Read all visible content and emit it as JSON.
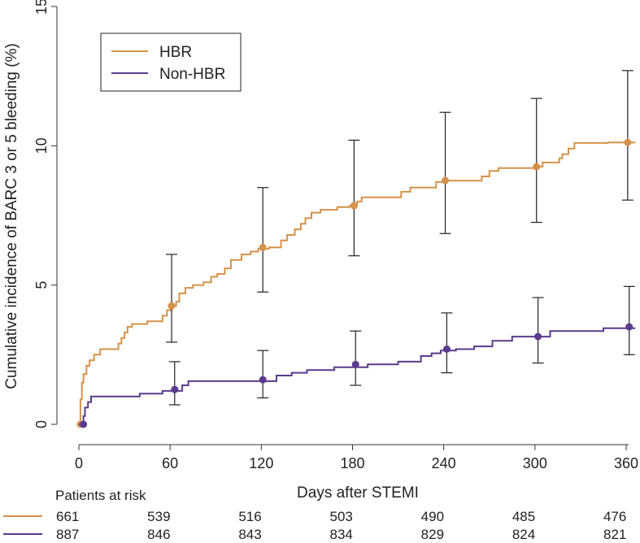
{
  "chart_data": {
    "type": "line",
    "title": "",
    "xlabel": "Days after STEMI",
    "ylabel": "Cumulative incidence of BARC 3 or 5 bleeding (%)",
    "xlim": [
      0,
      366
    ],
    "ylim": [
      0,
      15
    ],
    "x_ticks": [
      0,
      60,
      120,
      180,
      240,
      300,
      360
    ],
    "y_ticks": [
      0,
      5,
      10,
      15
    ],
    "legend": {
      "position": "top-left",
      "entries": [
        "HBR",
        "Non-HBR"
      ]
    },
    "series": [
      {
        "name": "HBR",
        "color": "#d4924a",
        "steps": [
          [
            0,
            0
          ],
          [
            1,
            0.9
          ],
          [
            2,
            1.5
          ],
          [
            3,
            1.8
          ],
          [
            5,
            2.1
          ],
          [
            7,
            2.3
          ],
          [
            10,
            2.5
          ],
          [
            14,
            2.7
          ],
          [
            26,
            2.9
          ],
          [
            28,
            3.1
          ],
          [
            30,
            3.3
          ],
          [
            32,
            3.5
          ],
          [
            35,
            3.6
          ],
          [
            45,
            3.7
          ],
          [
            55,
            3.9
          ],
          [
            58,
            4.1
          ],
          [
            61,
            4.25
          ],
          [
            64,
            4.4
          ],
          [
            66,
            4.7
          ],
          [
            70,
            4.9
          ],
          [
            75,
            5.0
          ],
          [
            82,
            5.1
          ],
          [
            87,
            5.3
          ],
          [
            91,
            5.4
          ],
          [
            96,
            5.6
          ],
          [
            100,
            5.9
          ],
          [
            107,
            6.1
          ],
          [
            113,
            6.2
          ],
          [
            118,
            6.3
          ],
          [
            125,
            6.35
          ],
          [
            133,
            6.6
          ],
          [
            137,
            6.8
          ],
          [
            142,
            7.0
          ],
          [
            146,
            7.2
          ],
          [
            149,
            7.4
          ],
          [
            153,
            7.6
          ],
          [
            159,
            7.7
          ],
          [
            170,
            7.8
          ],
          [
            178,
            7.85
          ],
          [
            183,
            8.0
          ],
          [
            186,
            8.15
          ],
          [
            212,
            8.35
          ],
          [
            218,
            8.5
          ],
          [
            235,
            8.7
          ],
          [
            240,
            8.75
          ],
          [
            265,
            8.9
          ],
          [
            270,
            9.1
          ],
          [
            276,
            9.2
          ],
          [
            300,
            9.25
          ],
          [
            305,
            9.4
          ],
          [
            316,
            9.55
          ],
          [
            318,
            9.7
          ],
          [
            322,
            9.9
          ],
          [
            326,
            10.1
          ],
          [
            348,
            10.12
          ],
          [
            366,
            10.12
          ]
        ],
        "markers": [
          {
            "x": 1,
            "y": 0,
            "lo": 0,
            "hi": 0
          },
          {
            "x": 61,
            "y": 4.25,
            "lo": 2.95,
            "hi": 6.1
          },
          {
            "x": 121,
            "y": 6.35,
            "lo": 4.75,
            "hi": 8.5
          },
          {
            "x": 181,
            "y": 7.85,
            "lo": 6.05,
            "hi": 10.2
          },
          {
            "x": 241,
            "y": 8.75,
            "lo": 6.85,
            "hi": 11.2
          },
          {
            "x": 301,
            "y": 9.25,
            "lo": 7.25,
            "hi": 11.7
          },
          {
            "x": 361,
            "y": 10.12,
            "lo": 8.05,
            "hi": 12.7
          }
        ]
      },
      {
        "name": "Non-HBR",
        "color": "#5b3a8c",
        "steps": [
          [
            0,
            0
          ],
          [
            3,
            0.3
          ],
          [
            4,
            0.6
          ],
          [
            6,
            0.8
          ],
          [
            8,
            1.0
          ],
          [
            40,
            1.1
          ],
          [
            55,
            1.2
          ],
          [
            68,
            1.4
          ],
          [
            72,
            1.55
          ],
          [
            115,
            1.55
          ],
          [
            130,
            1.75
          ],
          [
            140,
            1.85
          ],
          [
            150,
            1.95
          ],
          [
            168,
            2.05
          ],
          [
            190,
            2.15
          ],
          [
            210,
            2.25
          ],
          [
            225,
            2.45
          ],
          [
            232,
            2.55
          ],
          [
            238,
            2.65
          ],
          [
            248,
            2.7
          ],
          [
            260,
            2.8
          ],
          [
            272,
            3.0
          ],
          [
            285,
            3.15
          ],
          [
            310,
            3.35
          ],
          [
            345,
            3.45
          ],
          [
            366,
            3.45
          ]
        ],
        "markers": [
          {
            "x": 3,
            "y": 0,
            "lo": 0,
            "hi": 0
          },
          {
            "x": 63,
            "y": 1.25,
            "lo": 0.7,
            "hi": 2.25
          },
          {
            "x": 121,
            "y": 1.6,
            "lo": 0.95,
            "hi": 2.65
          },
          {
            "x": 182,
            "y": 2.15,
            "lo": 1.4,
            "hi": 3.35
          },
          {
            "x": 242,
            "y": 2.7,
            "lo": 1.85,
            "hi": 4.0
          },
          {
            "x": 302,
            "y": 3.15,
            "lo": 2.2,
            "hi": 4.55
          },
          {
            "x": 362,
            "y": 3.5,
            "lo": 2.5,
            "hi": 4.95
          }
        ]
      }
    ],
    "risk_table": {
      "title": "Patients at risk",
      "days": [
        0,
        60,
        120,
        180,
        240,
        300,
        360
      ],
      "rows": [
        {
          "name": "HBR",
          "color": "#d4924a",
          "values": [
            "661",
            "539",
            "516",
            "503",
            "490",
            "485",
            "476"
          ]
        },
        {
          "name": "Non-HBR",
          "color": "#5b3a8c",
          "values": [
            "887",
            "846",
            "843",
            "834",
            "829",
            "824",
            "821"
          ]
        }
      ]
    }
  }
}
